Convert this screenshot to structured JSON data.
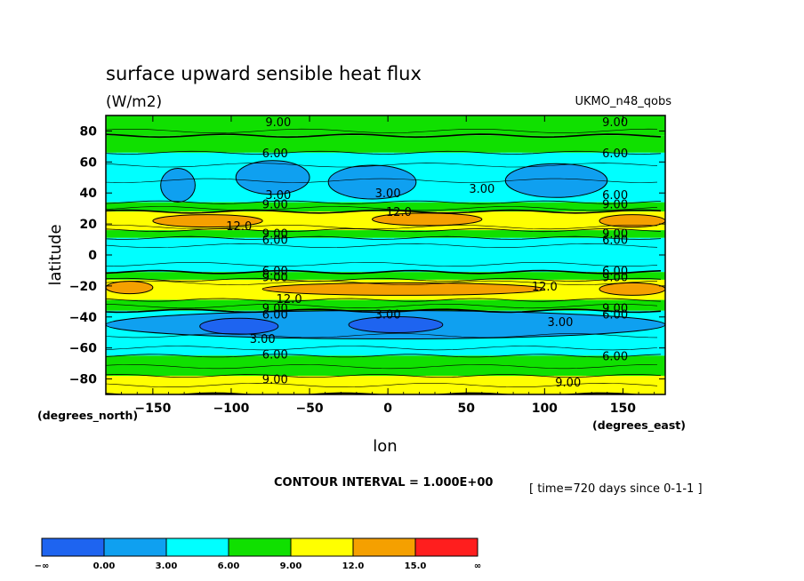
{
  "chart_data": {
    "type": "heatmap",
    "title": "surface upward sensible heat flux",
    "units": "(W/m2)",
    "dataset": "UKMO_n48_qobs",
    "xlabel": "lon",
    "ylabel": "latitude",
    "x_unit": "(degrees_east)",
    "y_unit": "(degrees_north)",
    "xlim": [
      -180,
      177
    ],
    "ylim": [
      -90,
      90
    ],
    "x_ticks": [
      "−150",
      "−100",
      "−50",
      "0",
      "50",
      "100",
      "150"
    ],
    "x_tick_values": [
      -150,
      -100,
      -50,
      0,
      50,
      100,
      150
    ],
    "y_ticks": [
      "80",
      "60",
      "40",
      "20",
      "0",
      "−20",
      "−40",
      "−60",
      "−80"
    ],
    "y_tick_values": [
      80,
      60,
      40,
      20,
      0,
      -20,
      -40,
      -60,
      -80
    ],
    "contour_interval": "CONTOUR INTERVAL = 1.000E+00",
    "time_note": "[ time=720 days since 0-1-1 ]",
    "color_levels": [
      {
        "label": "−∞",
        "color": "#1e64f0"
      },
      {
        "label": "0.00",
        "color": "#0fa0f0"
      },
      {
        "label": "3.00",
        "color": "#00ffff"
      },
      {
        "label": "6.00",
        "color": "#10e000"
      },
      {
        "label": "9.00",
        "color": "#ffff00"
      },
      {
        "label": "12.0",
        "color": "#f5a000"
      },
      {
        "label": "15.0",
        "color": "#ff1e1e"
      },
      {
        "label": "∞"
      }
    ],
    "latitude_bands": [
      {
        "from": 90,
        "to": 77,
        "band": "green"
      },
      {
        "from": 77,
        "to": 66,
        "band": "green"
      },
      {
        "from": 66,
        "to": 34,
        "band": "cyan"
      },
      {
        "from": 34,
        "to": 28,
        "band": "green"
      },
      {
        "from": 28,
        "to": 16,
        "band": "yellow"
      },
      {
        "from": 16,
        "to": 11,
        "band": "green"
      },
      {
        "from": 11,
        "to": -11,
        "band": "cyan"
      },
      {
        "from": -11,
        "to": -16,
        "band": "green"
      },
      {
        "from": -16,
        "to": -29,
        "band": "yellow"
      },
      {
        "from": -29,
        "to": -36,
        "band": "green"
      },
      {
        "from": -36,
        "to": -65,
        "band": "cyan"
      },
      {
        "from": -65,
        "to": -78,
        "band": "green"
      },
      {
        "from": -78,
        "to": -90,
        "band": "yellow"
      }
    ],
    "regions": [
      {
        "level": "0.00",
        "color_index": 1,
        "lat": 45,
        "lon": [
          -145,
          -123
        ]
      },
      {
        "level": "0.00",
        "color_index": 1,
        "lat": 50,
        "lon": [
          -97,
          -50
        ]
      },
      {
        "level": "0.00",
        "color_index": 1,
        "lat": 47,
        "lon": [
          -38,
          18
        ]
      },
      {
        "level": "0.00",
        "color_index": 1,
        "lat": 48,
        "lon": [
          75,
          140
        ]
      },
      {
        "level": "12.0",
        "color_index": 5,
        "lat": 22,
        "lon": [
          -150,
          -80
        ]
      },
      {
        "level": "12.0",
        "color_index": 5,
        "lat": 23,
        "lon": [
          -10,
          60
        ]
      },
      {
        "level": "12.0",
        "color_index": 5,
        "lat": 22,
        "lon": [
          135,
          177
        ]
      },
      {
        "level": "12.0",
        "color_index": 5,
        "lat": -21,
        "lon": [
          -180,
          -150
        ]
      },
      {
        "level": "12.0",
        "color_index": 5,
        "lat": -22,
        "lon": [
          -80,
          100
        ]
      },
      {
        "level": "12.0",
        "color_index": 5,
        "lat": -22,
        "lon": [
          135,
          177
        ]
      },
      {
        "level": "0.00",
        "color_index": 1,
        "lat": -45,
        "lon": [
          -180,
          177
        ]
      },
      {
        "level": "-∞",
        "color_index": 0,
        "lat": -46,
        "lon": [
          -120,
          -70
        ]
      },
      {
        "level": "-∞",
        "color_index": 0,
        "lat": -45,
        "lon": [
          -25,
          35
        ]
      }
    ],
    "contour_labels": [
      {
        "text": "9.00",
        "lon": -70,
        "lat": 86
      },
      {
        "text": "9.00",
        "lon": 145,
        "lat": 86
      },
      {
        "text": "6.00",
        "lon": -72,
        "lat": 66
      },
      {
        "text": "6.00",
        "lon": 145,
        "lat": 66
      },
      {
        "text": "3.00",
        "lon": -70,
        "lat": 39
      },
      {
        "text": "3.00",
        "lon": 0,
        "lat": 40
      },
      {
        "text": "3.00",
        "lon": 60,
        "lat": 43
      },
      {
        "text": "6.00",
        "lon": 145,
        "lat": 39
      },
      {
        "text": "9.00",
        "lon": -72,
        "lat": 33
      },
      {
        "text": "9.00",
        "lon": 145,
        "lat": 33
      },
      {
        "text": "12.0",
        "lon": 7,
        "lat": 28
      },
      {
        "text": "12.0",
        "lon": -95,
        "lat": 19
      },
      {
        "text": "9.00",
        "lon": -72,
        "lat": 14
      },
      {
        "text": "6.00",
        "lon": -72,
        "lat": 10
      },
      {
        "text": "9.00",
        "lon": 145,
        "lat": 14
      },
      {
        "text": "6.00",
        "lon": 145,
        "lat": 10
      },
      {
        "text": "6.00",
        "lon": -72,
        "lat": -10
      },
      {
        "text": "9.00",
        "lon": -72,
        "lat": -14
      },
      {
        "text": "6.00",
        "lon": 145,
        "lat": -10
      },
      {
        "text": "9.00",
        "lon": 145,
        "lat": -14
      },
      {
        "text": "12.0",
        "lon": 100,
        "lat": -20
      },
      {
        "text": "12.0",
        "lon": -63,
        "lat": -28
      },
      {
        "text": "9.00",
        "lon": -72,
        "lat": -34
      },
      {
        "text": "6.00",
        "lon": -72,
        "lat": -38
      },
      {
        "text": "9.00",
        "lon": 145,
        "lat": -34
      },
      {
        "text": "6.00",
        "lon": 145,
        "lat": -38
      },
      {
        "text": "3.00",
        "lon": 0,
        "lat": -38
      },
      {
        "text": "3.00",
        "lon": 110,
        "lat": -43
      },
      {
        "text": "3.00",
        "lon": -80,
        "lat": -54
      },
      {
        "text": "6.00",
        "lon": -72,
        "lat": -64
      },
      {
        "text": "6.00",
        "lon": 145,
        "lat": -65
      },
      {
        "text": "9.00",
        "lon": -72,
        "lat": -80
      },
      {
        "text": "9.00",
        "lon": 115,
        "lat": -82
      }
    ]
  }
}
